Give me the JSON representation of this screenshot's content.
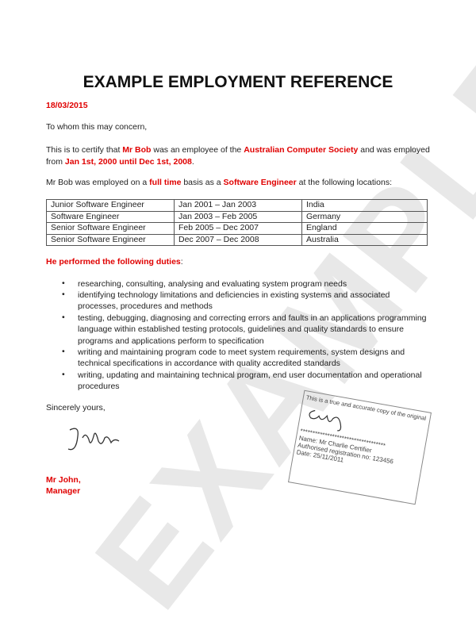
{
  "title": "EXAMPLE EMPLOYMENT REFERENCE",
  "date": "18/03/2015",
  "greeting": "To whom this may concern,",
  "para1": {
    "t1": "This is to certify that ",
    "name": "Mr Bob",
    "t2": " was an employee of the ",
    "org": "Australian Computer Society",
    "t3": " and was employed",
    "t4": "from ",
    "period": "Jan 1st, 2000 until Dec 1st, 2008",
    "t5": "."
  },
  "para2": {
    "t1": "Mr Bob was employed on a ",
    "basis": "full time",
    "t2": " basis as a ",
    "role": "Software Engineer",
    "t3": " at the following locations:"
  },
  "table": [
    [
      "Junior Software Engineer",
      "Jan 2001 – Jan 2003",
      "India"
    ],
    [
      "Software Engineer",
      "Jan 2003 – Feb 2005",
      "Germany"
    ],
    [
      "Senior Software Engineer",
      "Feb 2005 – Dec 2007",
      "England"
    ],
    [
      "Senior Software Engineer",
      "Dec 2007 – Dec 2008",
      "Australia"
    ]
  ],
  "duties_heading": "He performed the following duties",
  "duties_colon": ":",
  "duties": [
    "researching, consulting, analysing and evaluating system program needs",
    "identifying technology limitations and deficiencies in existing systems and associated processes, procedures and methods",
    "testing, debugging, diagnosing and correcting errors and faults in an applications programming language within established testing protocols, guidelines and quality standards to ensure programs and applications perform to specification",
    "writing and maintaining program code to meet system requirements, system designs and technical specifications in accordance with quality accredited standards",
    "writing, updating and maintaining technical program, end user documentation and operational procedures"
  ],
  "closing": "Sincerely yours,",
  "signer_name": "Mr John,",
  "signer_title": "Manager",
  "watermark": "EXAMPLE",
  "stamp": {
    "line1": "This is a true and accurate copy of the original",
    "stars": "***********************************",
    "name": "Name: Mr Charlie Certifier",
    "reg": "Authorised registration no: 123456",
    "date": "Date: 25/11/2011"
  },
  "colors": {
    "accent": "#e00000"
  }
}
